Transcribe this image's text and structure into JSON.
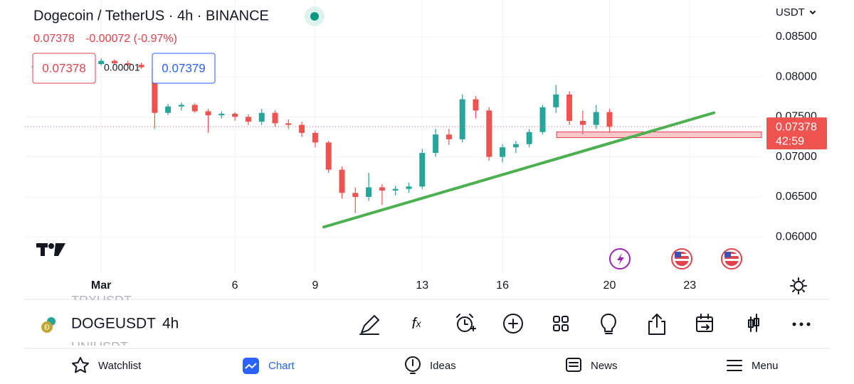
{
  "header": {
    "title": "Dogecoin / TetherUS · 4h · BINANCE",
    "last": "0.07378",
    "change": "-0.00072 (-0.97%)",
    "bid": "0.07378",
    "spread": "0.00001",
    "ask": "0.07379",
    "currency": "USDT"
  },
  "chart_data": {
    "type": "candlestick",
    "x": [
      -1.5,
      -1,
      -0.5,
      0,
      0.5,
      1,
      1.5,
      2,
      2.5,
      3,
      3.5,
      4,
      4.5,
      5,
      5.5,
      6,
      6.5,
      7,
      7.5,
      8,
      8.5,
      9,
      9.5,
      10,
      10.5,
      11,
      11.5,
      12,
      12.5,
      13,
      13.5,
      14,
      14.5,
      15,
      15.5,
      16,
      16.5,
      17,
      17.5,
      18,
      18.5,
      19,
      19.5,
      20
    ],
    "open": [
      0.0812,
      0.0813,
      0.0812,
      0.0811,
      0.0813,
      0.0816,
      0.082,
      0.0817,
      0.0815,
      0.0812,
      0.0755,
      0.0763,
      0.0765,
      0.0757,
      0.0752,
      0.0754,
      0.075,
      0.0744,
      0.0755,
      0.0742,
      0.074,
      0.073,
      0.0718,
      0.0684,
      0.0655,
      0.065,
      0.0662,
      0.0658,
      0.066,
      0.0663,
      0.0705,
      0.0728,
      0.0722,
      0.0772,
      0.0758,
      0.07,
      0.0712,
      0.0716,
      0.0731,
      0.0762,
      0.0778,
      0.0745,
      0.074,
      0.0756
    ],
    "high": [
      0.0815,
      0.0816,
      0.0815,
      0.0814,
      0.0818,
      0.0823,
      0.0822,
      0.082,
      0.0818,
      0.0814,
      0.0766,
      0.0768,
      0.0767,
      0.076,
      0.0757,
      0.0756,
      0.0753,
      0.076,
      0.0758,
      0.0747,
      0.0744,
      0.0733,
      0.072,
      0.0688,
      0.0662,
      0.068,
      0.0666,
      0.0664,
      0.0668,
      0.071,
      0.0735,
      0.0735,
      0.0778,
      0.0776,
      0.0762,
      0.0716,
      0.072,
      0.0735,
      0.0765,
      0.079,
      0.0782,
      0.0758,
      0.0765,
      0.076
    ],
    "low": [
      0.081,
      0.0811,
      0.0809,
      0.0808,
      0.0811,
      0.0814,
      0.0815,
      0.0813,
      0.081,
      0.0735,
      0.0752,
      0.0758,
      0.0755,
      0.073,
      0.0748,
      0.0745,
      0.074,
      0.074,
      0.0738,
      0.0735,
      0.0725,
      0.0712,
      0.068,
      0.0648,
      0.063,
      0.0645,
      0.064,
      0.0652,
      0.0655,
      0.066,
      0.07,
      0.0715,
      0.0718,
      0.0748,
      0.0695,
      0.0693,
      0.0705,
      0.0712,
      0.0728,
      0.0755,
      0.074,
      0.0728,
      0.0735,
      0.073
    ],
    "close": [
      0.0813,
      0.0812,
      0.0811,
      0.0813,
      0.0816,
      0.082,
      0.0817,
      0.0815,
      0.0812,
      0.0755,
      0.0763,
      0.0765,
      0.0757,
      0.0752,
      0.0754,
      0.075,
      0.0744,
      0.0755,
      0.0742,
      0.074,
      0.073,
      0.0718,
      0.0684,
      0.0655,
      0.065,
      0.0662,
      0.0658,
      0.066,
      0.0663,
      0.0705,
      0.0728,
      0.0722,
      0.0772,
      0.0758,
      0.07,
      0.0712,
      0.0716,
      0.0731,
      0.0762,
      0.0778,
      0.0745,
      0.074,
      0.0756,
      0.07378
    ],
    "up_color": "#26a69a",
    "down_color": "#ef5350",
    "xlim": [
      -1.85,
      25.68
    ],
    "ylim": [
      0.0554,
      0.0896
    ],
    "xticks": [
      {
        "value": 1,
        "label": "Mar"
      },
      6,
      9,
      13,
      16,
      20,
      23
    ],
    "yticks": [
      {
        "value": 0.06,
        "label": "0.06000"
      },
      {
        "value": 0.065,
        "label": "0.06500"
      },
      {
        "value": 0.07,
        "label": "0.07000"
      },
      {
        "value": 0.075,
        "label": "0.07500"
      },
      {
        "value": 0.08,
        "label": "0.08000"
      },
      {
        "value": 0.085,
        "label": "0.08500"
      }
    ],
    "grid": true,
    "last_price": 0.07378,
    "countdown": "42:59",
    "trendline": {
      "x": [
        9.32,
        23.9
      ],
      "y": [
        0.06124,
        0.07551
      ],
      "color": "#4caf50"
    },
    "zone": {
      "x": [
        18.02,
        25.68
      ],
      "y": [
        0.07241,
        0.07312
      ],
      "color": "#f8c8cc"
    }
  },
  "toolbar": {
    "symbol": "DOGEUSDT",
    "interval": "4h",
    "above": "TRXUSDT",
    "below": "UNIUSDT"
  },
  "nav": {
    "items": [
      "Watchlist",
      "Chart",
      "Ideas",
      "News",
      "Menu"
    ]
  }
}
